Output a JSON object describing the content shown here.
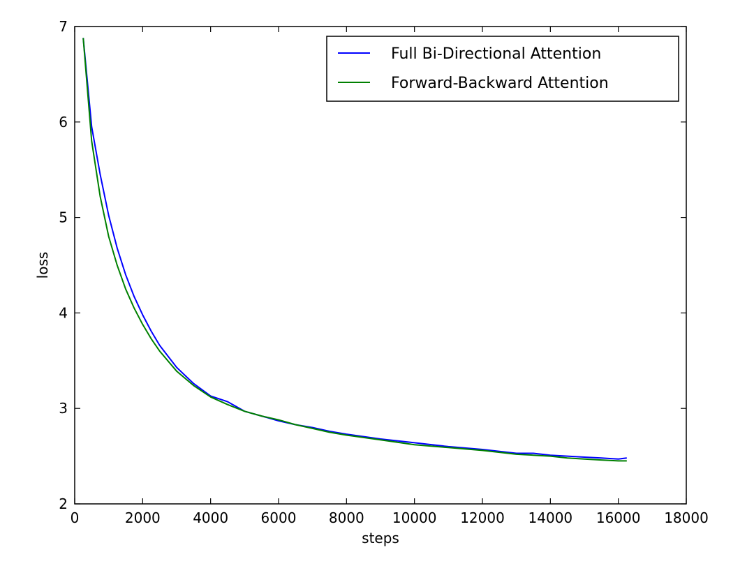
{
  "chart_data": {
    "type": "line",
    "title": "",
    "xlabel": "steps",
    "ylabel": "loss",
    "xlim": [
      0,
      18000
    ],
    "ylim": [
      2,
      7
    ],
    "xticks": [
      0,
      2000,
      4000,
      6000,
      8000,
      10000,
      12000,
      14000,
      16000,
      18000
    ],
    "yticks": [
      2,
      3,
      4,
      5,
      6,
      7
    ],
    "grid": false,
    "legend": {
      "position": "top-right"
    },
    "series": [
      {
        "name": "Full Bi-Directional Attention",
        "color": "#0000ff",
        "x": [
          250,
          500,
          750,
          1000,
          1250,
          1500,
          1750,
          2000,
          2250,
          2500,
          3000,
          3500,
          4000,
          4500,
          5000,
          5500,
          6000,
          6500,
          7000,
          7500,
          8000,
          9000,
          10000,
          11000,
          12000,
          13000,
          13500,
          14000,
          14500,
          15000,
          15500,
          16000,
          16250
        ],
        "y": [
          6.88,
          5.95,
          5.45,
          5.02,
          4.68,
          4.4,
          4.17,
          3.98,
          3.81,
          3.66,
          3.43,
          3.26,
          3.13,
          3.07,
          2.97,
          2.92,
          2.87,
          2.83,
          2.8,
          2.76,
          2.73,
          2.68,
          2.64,
          2.6,
          2.57,
          2.53,
          2.53,
          2.51,
          2.5,
          2.49,
          2.48,
          2.47,
          2.48
        ]
      },
      {
        "name": "Forward-Backward Attention",
        "color": "#008000",
        "x": [
          250,
          500,
          750,
          1000,
          1250,
          1500,
          1750,
          2000,
          2250,
          2500,
          3000,
          3500,
          4000,
          4500,
          5000,
          5500,
          6000,
          6500,
          7000,
          7500,
          8000,
          9000,
          10000,
          11000,
          12000,
          13000,
          13500,
          14000,
          14500,
          15000,
          15500,
          16000,
          16250
        ],
        "y": [
          6.88,
          5.8,
          5.22,
          4.8,
          4.5,
          4.25,
          4.05,
          3.88,
          3.73,
          3.6,
          3.39,
          3.24,
          3.12,
          3.04,
          2.97,
          2.92,
          2.88,
          2.83,
          2.79,
          2.75,
          2.72,
          2.67,
          2.62,
          2.59,
          2.56,
          2.52,
          2.51,
          2.5,
          2.48,
          2.47,
          2.46,
          2.45,
          2.45
        ]
      }
    ]
  }
}
